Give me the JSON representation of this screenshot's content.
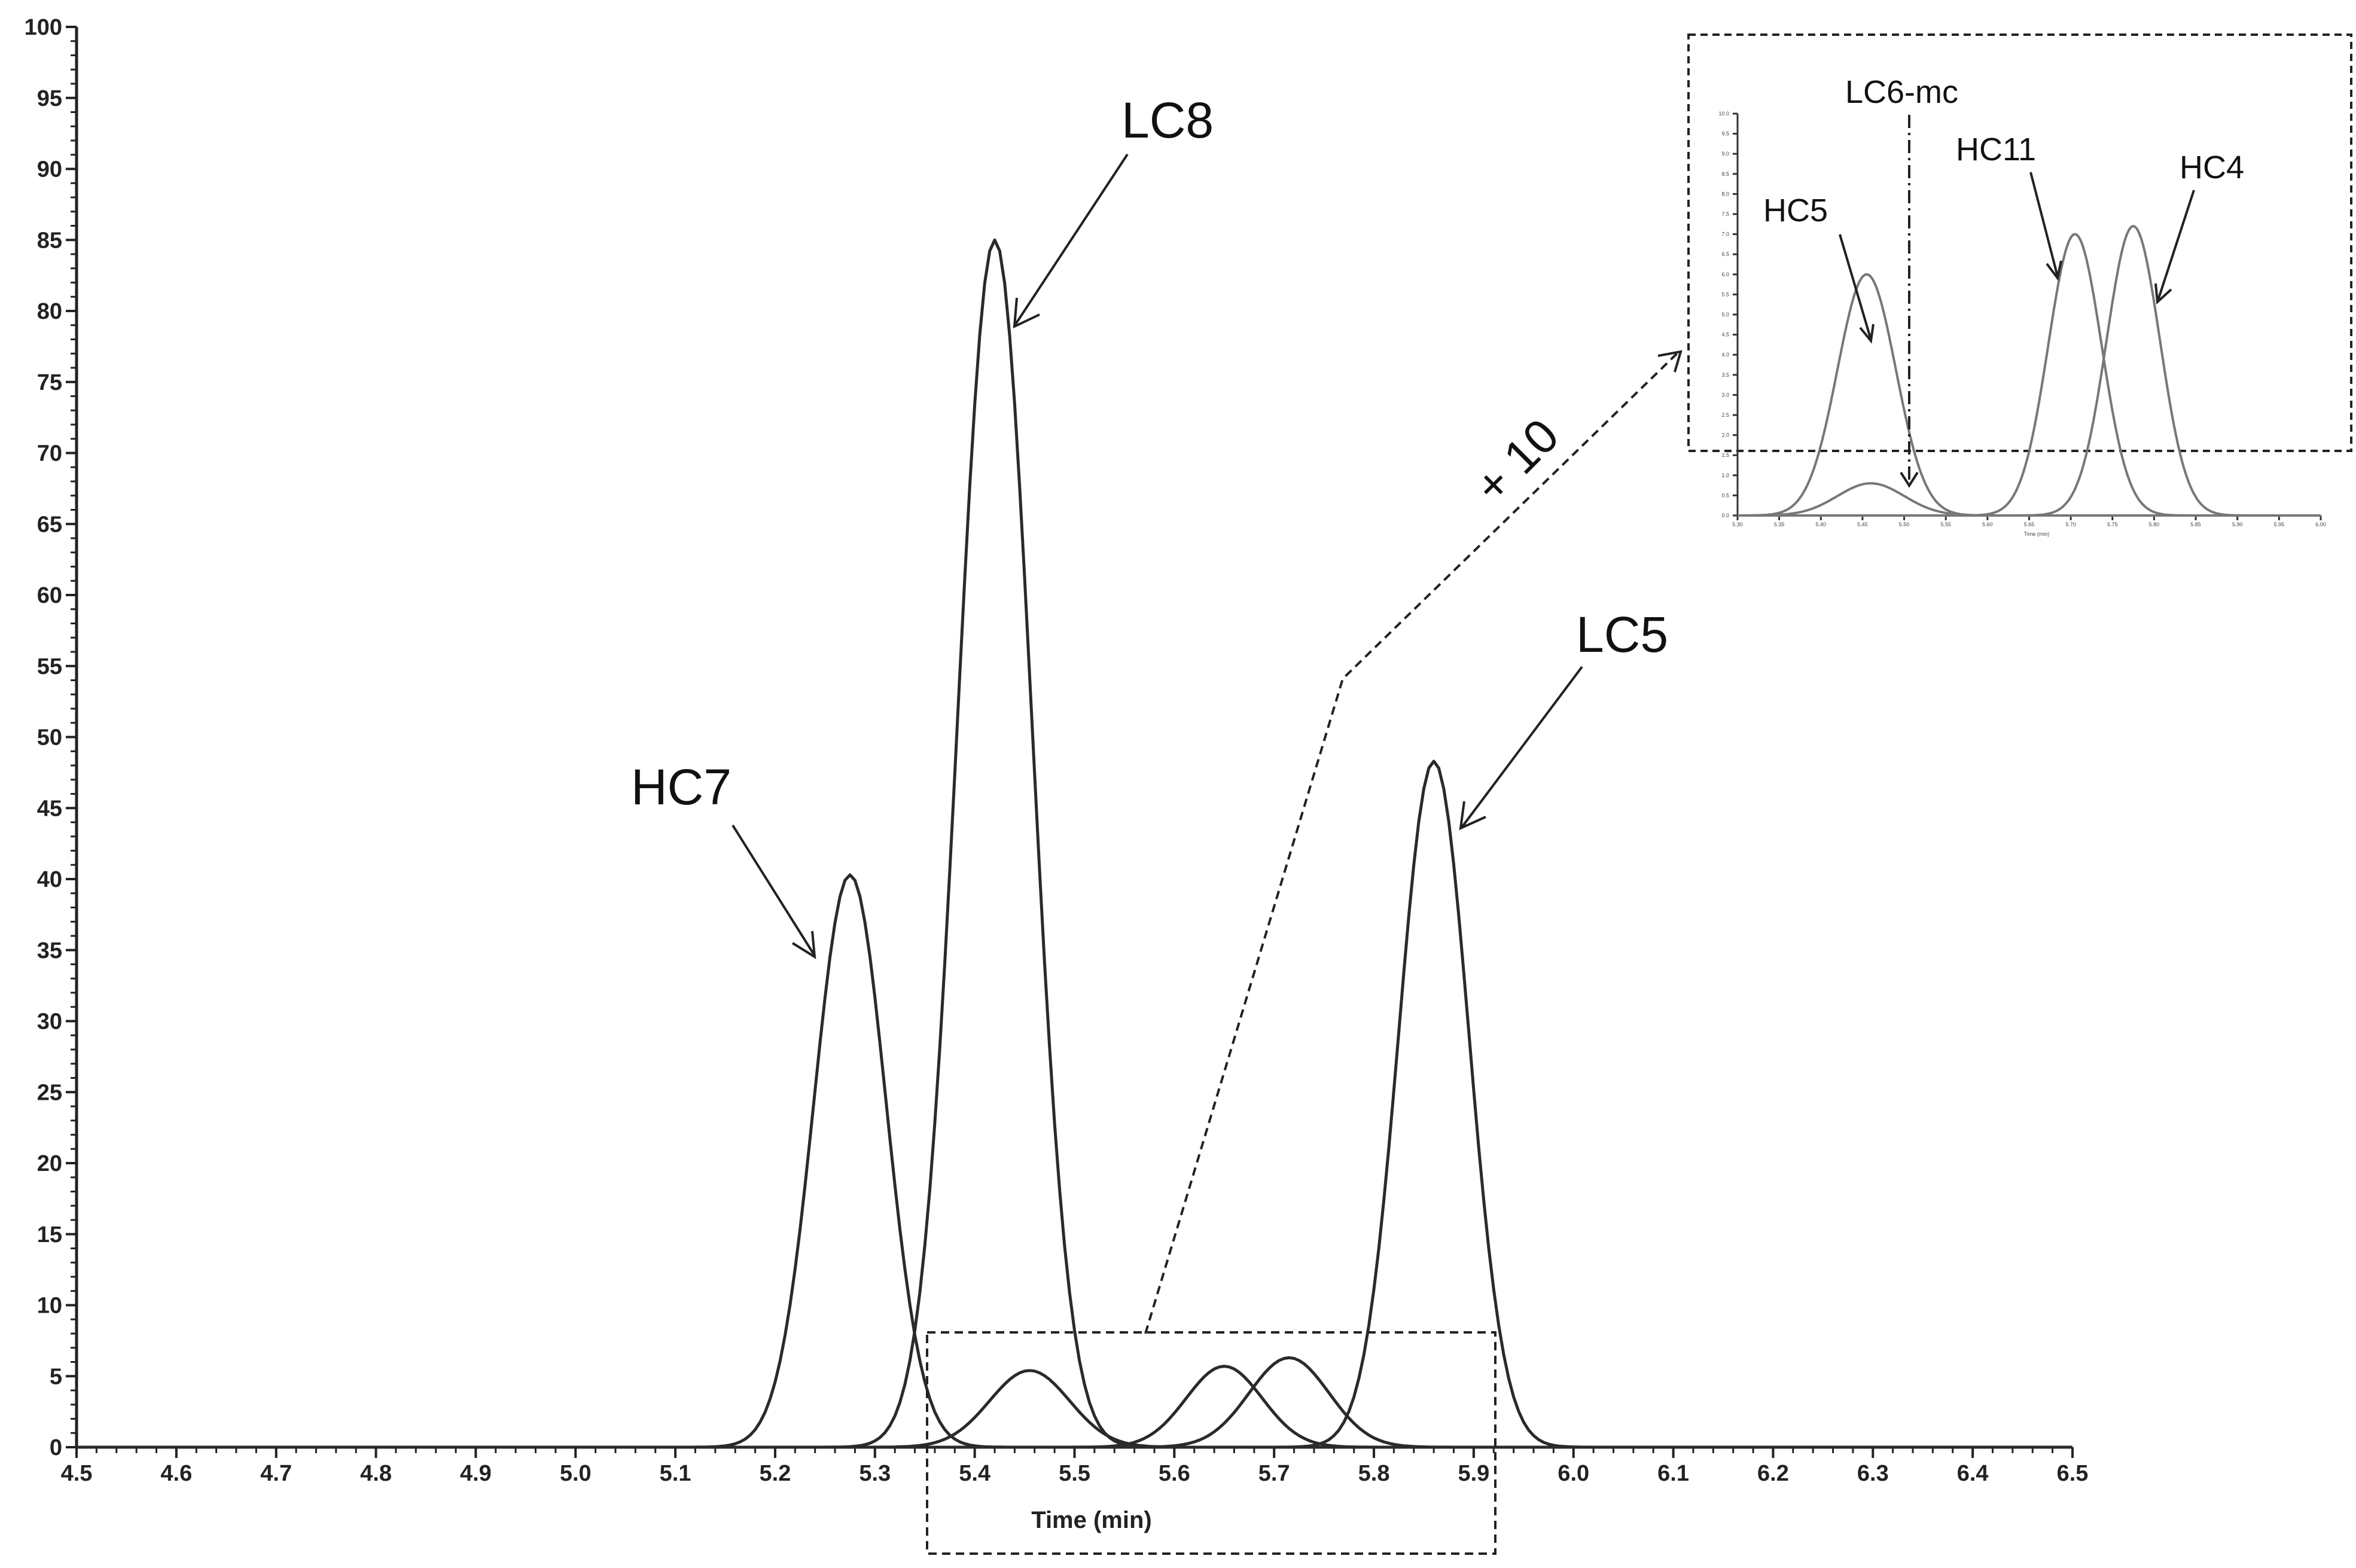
{
  "chart_data": [
    {
      "type": "line",
      "title": "",
      "xlabel": "Time (min)",
      "ylabel": "",
      "xlim": [
        4.5,
        6.5
      ],
      "ylim": [
        0,
        100
      ],
      "x_ticks": [
        "4.5",
        "4.6",
        "4.7",
        "4.8",
        "4.9",
        "5.0",
        "5.1",
        "5.2",
        "5.3",
        "5.4",
        "5.5",
        "5.6",
        "5.7",
        "5.8",
        "5.9",
        "6.0",
        "6.1",
        "6.2",
        "6.3",
        "6.4",
        "6.5"
      ],
      "y_ticks": [
        "0",
        "5",
        "10",
        "15",
        "20",
        "25",
        "30",
        "35",
        "40",
        "45",
        "50",
        "55",
        "60",
        "65",
        "70",
        "75",
        "80",
        "85",
        "90",
        "95",
        "100"
      ],
      "series": [
        {
          "name": "HC7",
          "peak_time": 5.275,
          "peak_height": 40.3,
          "width": 0.036
        },
        {
          "name": "LC8",
          "peak_time": 5.42,
          "peak_height": 85.0,
          "width": 0.037
        },
        {
          "name": "",
          "peak_time": 5.455,
          "peak_height": 5.4,
          "width": 0.04
        },
        {
          "name": "",
          "peak_time": 5.65,
          "peak_height": 5.7,
          "width": 0.038
        },
        {
          "name": "",
          "peak_time": 5.715,
          "peak_height": 6.3,
          "width": 0.04
        },
        {
          "name": "LC5",
          "peak_time": 5.86,
          "peak_height": 48.3,
          "width": 0.035
        }
      ],
      "annotations": [
        {
          "text": "HC7",
          "target": 5.275
        },
        {
          "text": "LC8",
          "target": 5.42
        },
        {
          "text": "LC5",
          "target": 5.86
        }
      ],
      "zoom_region": {
        "xlim": [
          5.35,
          5.93
        ],
        "ylim": [
          -8,
          8
        ]
      },
      "zoom_factor_label": "+ 10"
    },
    {
      "type": "line",
      "title": "",
      "xlabel": "Time (min)",
      "xlim": [
        5.3,
        6.0
      ],
      "ylim": [
        0,
        10
      ],
      "x_ticks": [
        "5.30",
        "5.35",
        "5.40",
        "5.45",
        "5.50",
        "5.55",
        "5.60",
        "5.65",
        "5.70",
        "5.75",
        "5.80",
        "5.85",
        "5.90",
        "5.95",
        "6.00"
      ],
      "y_ticks": [
        "0.0",
        "0.5",
        "1.0",
        "1.5",
        "2.0",
        "2.5",
        "3.0",
        "3.5",
        "4.0",
        "4.5",
        "5.0",
        "5.5",
        "6.0",
        "6.5",
        "7.0",
        "7.5",
        "8.0",
        "8.5",
        "9.0",
        "9.5",
        "10.0"
      ],
      "series": [
        {
          "name": "HC5",
          "peak_time": 5.455,
          "peak_height": 6.0,
          "width": 0.035
        },
        {
          "name": "LC6-mc",
          "peak_time": 5.46,
          "peak_height": 0.8,
          "width": 0.04
        },
        {
          "name": "HC11",
          "peak_time": 5.705,
          "peak_height": 7.0,
          "width": 0.032
        },
        {
          "name": "HC4",
          "peak_time": 5.775,
          "peak_height": 7.2,
          "width": 0.032
        }
      ],
      "annotations": [
        {
          "text": "HC5"
        },
        {
          "text": "LC6-mc"
        },
        {
          "text": "HC11"
        },
        {
          "text": "HC4"
        }
      ]
    }
  ]
}
